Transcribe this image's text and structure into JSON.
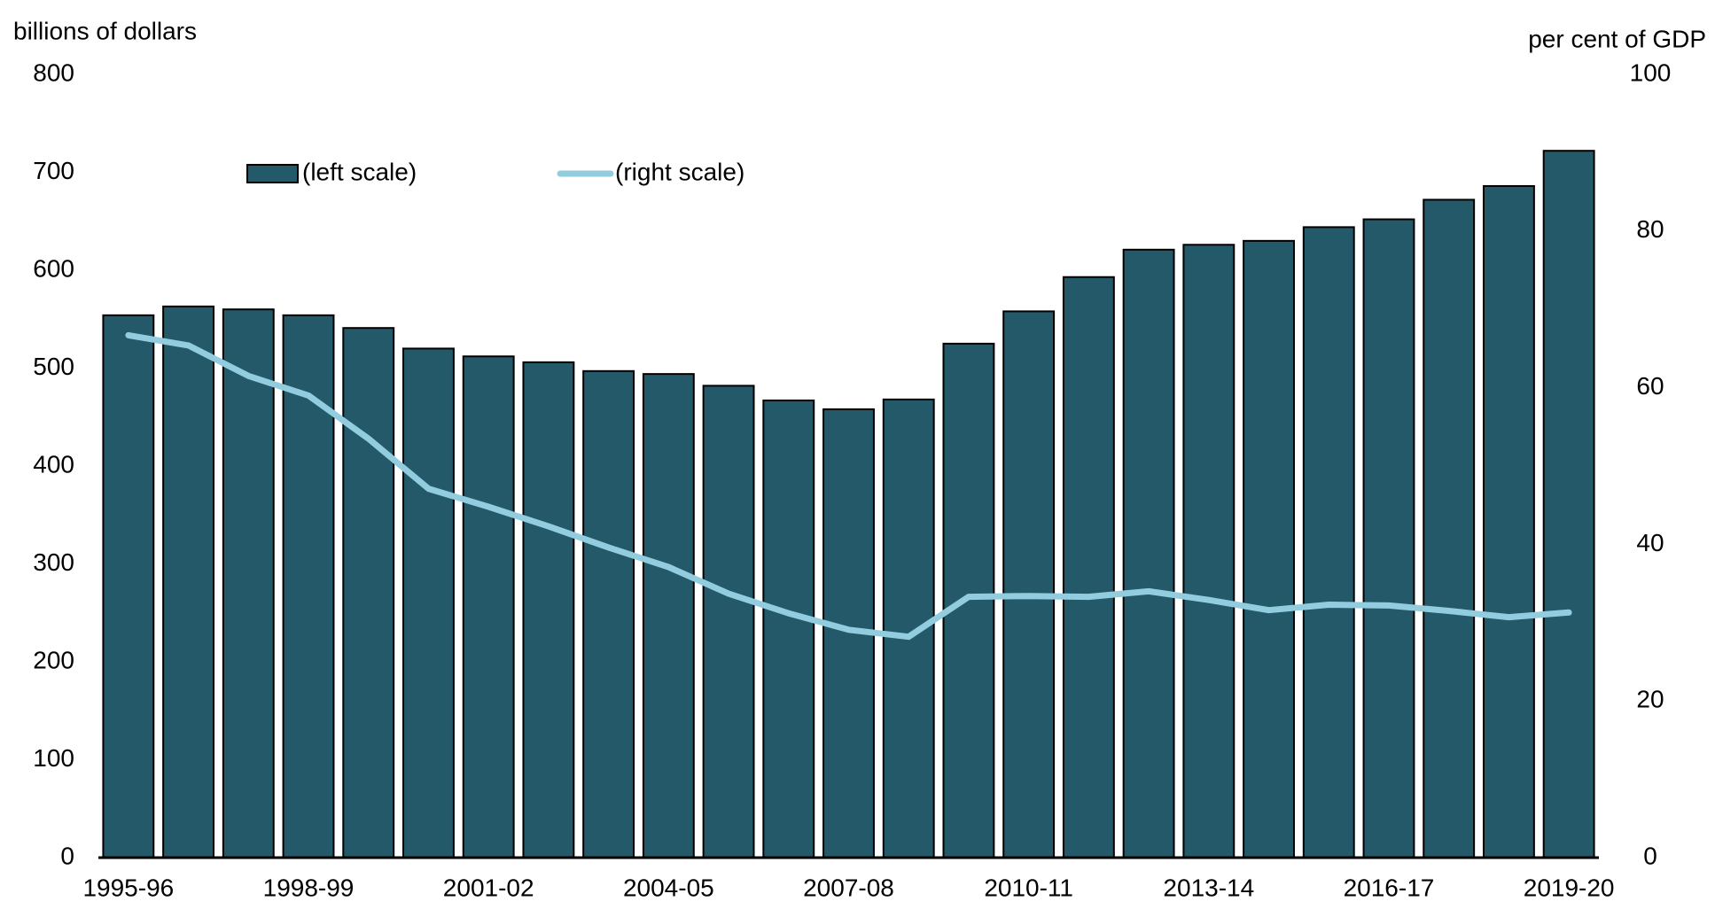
{
  "chart_data": {
    "type": "bar-line",
    "y_label": "billions of dollars",
    "y2_label": "per cent of GDP",
    "categories": [
      "1995-96",
      null,
      null,
      "1998-99",
      null,
      null,
      "2001-02",
      null,
      null,
      "2004-05",
      null,
      null,
      "2007-08",
      null,
      null,
      "2010-11",
      null,
      null,
      "2013-14",
      null,
      null,
      "2016-17",
      null,
      null,
      "2019-20"
    ],
    "series": [
      {
        "name": "(left scale)",
        "type": "bar",
        "color": "#235968",
        "values": [
          554,
          563,
          560,
          554,
          541,
          520,
          512,
          506,
          497,
          494,
          482,
          467,
          458,
          468,
          525,
          558,
          593,
          621,
          626,
          630,
          644,
          652,
          672,
          686,
          722
        ]
      },
      {
        "name": "(right scale)",
        "type": "line",
        "axis": "y2",
        "color": "#92cddf",
        "values": [
          66.7,
          65.4,
          61.5,
          59.0,
          53.5,
          47.1,
          44.8,
          42.3,
          39.6,
          37.1,
          33.7,
          31.2,
          29.1,
          28.2,
          33.3,
          33.4,
          33.3,
          34.0,
          32.9,
          31.6,
          32.3,
          32.2,
          31.5,
          30.7,
          31.3
        ]
      }
    ],
    "ylim": [
      0,
      800
    ],
    "yticks": [
      0,
      100,
      200,
      300,
      400,
      500,
      600,
      700,
      800
    ],
    "y2lim": [
      0,
      100
    ],
    "y2ticks": [
      0,
      20,
      40,
      60,
      80,
      100
    ],
    "grid": false
  }
}
